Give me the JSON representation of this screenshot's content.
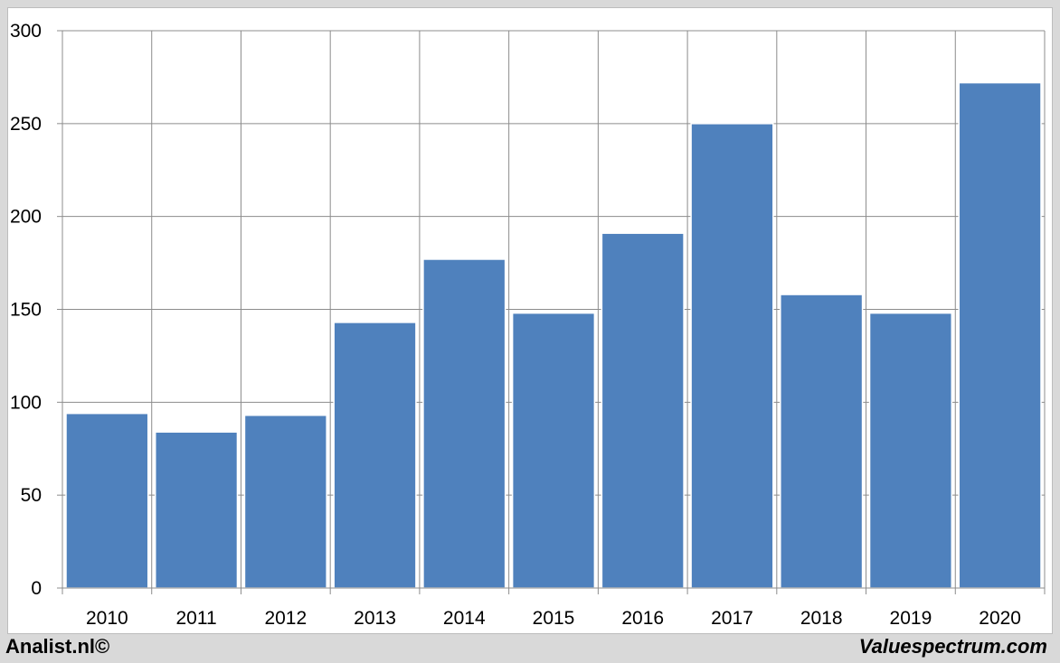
{
  "chart_data": {
    "type": "bar",
    "categories": [
      "2010",
      "2011",
      "2012",
      "2013",
      "2014",
      "2015",
      "2016",
      "2017",
      "2018",
      "2019",
      "2020"
    ],
    "values": [
      94,
      84,
      93,
      143,
      177,
      148,
      191,
      250,
      158,
      148,
      272
    ],
    "ylim": [
      0,
      300
    ],
    "yticks": [
      "0",
      "50",
      "100",
      "150",
      "200",
      "250",
      "300"
    ],
    "grid": true,
    "bar_color": "#4f81bd"
  },
  "footer": {
    "source_left": "Analist.nl©",
    "source_right": "Valuespectrum.com"
  }
}
